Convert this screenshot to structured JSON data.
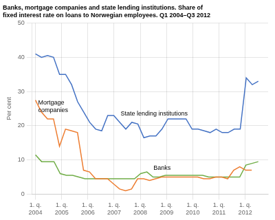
{
  "chart_data": {
    "type": "line",
    "title": "Banks, mortgage companies and state lending institutions. Share of\nfixed interest rate on loans to Norwegian employees. Q1 2004–Q3 2012",
    "ylabel": "Per cent",
    "xlim": [
      -0.5,
      35.5
    ],
    "xticks": [
      {
        "value": 0,
        "label": "1. q.\n2004"
      },
      {
        "value": 4,
        "label": "1. q.\n2005"
      },
      {
        "value": 8,
        "label": "1. q.\n2006"
      },
      {
        "value": 12,
        "label": "1. q.\n2007"
      },
      {
        "value": 16,
        "label": "1. q.\n2008"
      },
      {
        "value": 20,
        "label": "1. q.\n2009"
      },
      {
        "value": 24,
        "label": "1. q.\n2010"
      },
      {
        "value": 28,
        "label": "1. q.\n2011"
      },
      {
        "value": 32,
        "label": "1. q.\n2012"
      }
    ],
    "ylim": [
      0,
      50
    ],
    "yticks": [
      0,
      10,
      20,
      30,
      40,
      50
    ],
    "grid": true,
    "series": [
      {
        "name": "State lending institutions",
        "color": "#4472C4",
        "x": [
          0,
          0.918919,
          1.837838,
          2.756757,
          3.675676,
          4.594595,
          5.513514,
          6.432432,
          7.351351,
          8.27027,
          9.189189,
          10.108108,
          11.027027,
          11.945946,
          12.864865,
          13.783784,
          14.702703,
          15.621622,
          16.540541,
          17.459459,
          18.378378,
          19.297297,
          20.216216,
          21.135135,
          22.054054,
          22.972973,
          23.891892,
          24.810811,
          25.72973,
          26.648649,
          27.567568,
          28.486486,
          29.405405,
          30.324324,
          31.243243,
          32.162162,
          33.081081,
          34
        ],
        "values": [
          41,
          40,
          40.5,
          40,
          35,
          35,
          32,
          27,
          24,
          21,
          19,
          18.5,
          23,
          23,
          21,
          19,
          21,
          20.5,
          16.5,
          17,
          17,
          19,
          22,
          22,
          22,
          22,
          19,
          19,
          18.5,
          18,
          19,
          18,
          18,
          19,
          19,
          34,
          32,
          33
        ]
      },
      {
        "name": "Mortgage\ncompanies",
        "color": "#ED7D31",
        "x": [
          0,
          0.916667,
          1.833333,
          2.75,
          3.666667,
          4.583333,
          5.5,
          6.416667,
          7.333333,
          8.25,
          9.166667,
          10.083333,
          11,
          11.916667,
          12.833333,
          13.75,
          14.666667,
          15.583333,
          16.5,
          17.416667,
          18.333333,
          19.25,
          20.166667,
          21.083333,
          22,
          22.916667,
          23.833333,
          24.75,
          25.666667,
          26.583333,
          27.5,
          28.416667,
          29.333333,
          30.25,
          31.166667,
          32.083333,
          33
        ],
        "values": [
          27.5,
          24,
          22,
          22,
          14,
          19,
          18.5,
          18,
          7,
          6.5,
          4.5,
          4.5,
          4.5,
          3,
          1.5,
          1,
          1.5,
          4.5,
          4.5,
          4,
          4.5,
          5,
          5,
          5,
          5,
          5,
          5,
          5,
          4.5,
          4.5,
          5,
          5,
          4.5,
          7,
          8,
          7,
          7
        ]
      },
      {
        "name": "Banks",
        "color": "#70AD47",
        "x": [
          0,
          0.944444,
          1.888889,
          2.833333,
          3.777778,
          4.722222,
          5.666667,
          6.611111,
          7.555556,
          8.5,
          9.444444,
          10.388889,
          11.333333,
          12.277778,
          13.222222,
          14.166667,
          15.111111,
          16.055556,
          17,
          17.944444,
          18.888889,
          19.833333,
          20.777778,
          21.722222,
          22.666667,
          23.611111,
          24.555556,
          25.5,
          26.444444,
          27.388889,
          28.333333,
          29.277778,
          30.222222,
          31.166667,
          32.111111,
          33.055556,
          34
        ],
        "values": [
          11.5,
          9.5,
          9.5,
          9.5,
          6,
          5.5,
          5.5,
          5,
          4.5,
          4.5,
          4.5,
          4.5,
          4.5,
          4.5,
          4.5,
          4.5,
          4.5,
          6,
          6.5,
          5,
          5,
          5.5,
          5.5,
          5.5,
          5.5,
          5.5,
          5.5,
          5.5,
          5,
          5,
          5,
          5,
          5,
          5,
          8.5,
          9,
          9.5
        ]
      }
    ],
    "annotations": [
      {
        "text": "State lending institutions",
        "x": 13,
        "y": 23
      },
      {
        "text": "Mortgage\ncompanies",
        "x": 0.4,
        "y": 24
      },
      {
        "text": "Banks",
        "x": 18,
        "y": 7.2
      }
    ]
  }
}
